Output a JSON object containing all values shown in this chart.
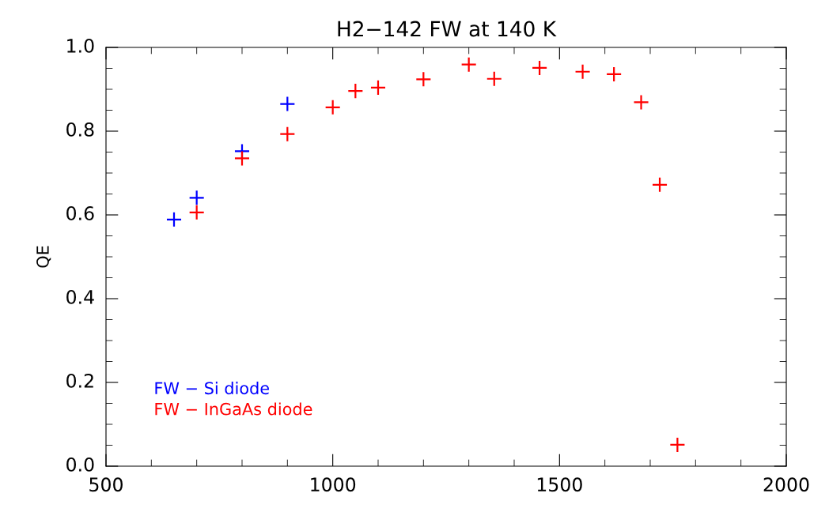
{
  "chart_data": {
    "type": "scatter",
    "title": "H2−142 FW at 140 K",
    "ylabel": "QE",
    "xlim": [
      500,
      2000
    ],
    "xticks": [
      500,
      1000,
      1500,
      2000
    ],
    "ylim": [
      0.0,
      1.0
    ],
    "yticks": [
      {
        "value": 0.0,
        "label": "0.0"
      },
      {
        "value": 0.2,
        "label": "0.2"
      },
      {
        "value": 0.4,
        "label": "0.4"
      },
      {
        "value": 0.6,
        "label": "0.6"
      },
      {
        "value": 0.8,
        "label": "0.8"
      },
      {
        "value": 1.0,
        "label": "1.0"
      }
    ],
    "marker": "cross",
    "grid": false,
    "legend": "bottom left",
    "series": [
      {
        "name": "FW − Si diode",
        "color": "#0000ff",
        "x": [
          650,
          700,
          800,
          900
        ],
        "values": [
          0.589,
          0.641,
          0.752,
          0.865
        ]
      },
      {
        "name": "FW − InGaAs diode",
        "color": "#ff0000",
        "x": [
          700,
          800,
          900,
          1000,
          1050,
          1100,
          1200,
          1300,
          1356,
          1456,
          1551,
          1620,
          1680,
          1721,
          1760
        ],
        "values": [
          0.606,
          0.735,
          0.793,
          0.857,
          0.896,
          0.904,
          0.924,
          0.959,
          0.925,
          0.951,
          0.942,
          0.936,
          0.869,
          0.672,
          0.051
        ]
      }
    ]
  }
}
